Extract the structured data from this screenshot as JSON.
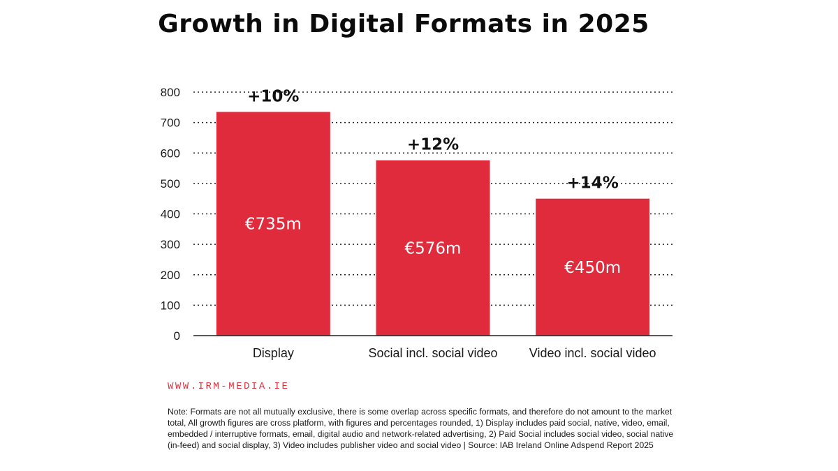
{
  "chart_data": {
    "type": "bar",
    "title": "Growth in Digital Formats in 2025",
    "categories": [
      "Display",
      "Social incl. social video",
      "Video incl. social video"
    ],
    "values": [
      735,
      576,
      450
    ],
    "value_labels": [
      "€735m",
      "€576m",
      "€450m"
    ],
    "growth_labels": [
      "+10%",
      "+12%",
      "+14%"
    ],
    "yticks": [
      0,
      100,
      200,
      300,
      400,
      500,
      600,
      700,
      800
    ],
    "ylim": [
      0,
      800
    ],
    "grid": "dotted horizontal",
    "bar_color": "#e02b3c"
  },
  "footer": {
    "website": "WWW.IRM-MEDIA.IE",
    "note": "Note: Formats are not all mutually exclusive, there is some overlap across specific formats, and therefore do not amount to the market total, All growth figures are cross platform, with figures and percentages rounded, 1) Display includes paid social, native, video, email, embedded / interruptive formats, email, digital audio and network-related advertising, 2) Paid Social includes social video, social native (in-feed) and social display, 3) Video includes publisher video and social video | Source: IAB Ireland Online Adspend Report 2025"
  },
  "colors": {
    "bar": "#e02b3c",
    "website": "#d9323f"
  }
}
